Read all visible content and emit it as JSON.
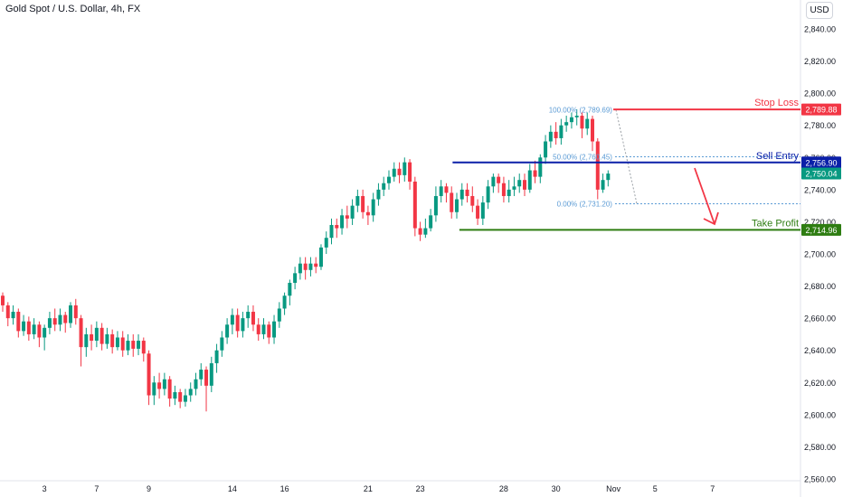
{
  "header": {
    "symbol_title": "Gold Spot / U.S. Dollar, 4h, FX",
    "currency": "USD"
  },
  "chart_data": {
    "type": "candlestick",
    "title": "Gold Spot / U.S. Dollar, 4h, FX",
    "currency": "USD",
    "ylim": [
      2560,
      2848
    ],
    "y_ticks": [
      2560,
      2580,
      2600,
      2620,
      2640,
      2660,
      2680,
      2700,
      2720,
      2740,
      2760,
      2780,
      2800,
      2820,
      2840
    ],
    "y_tick_labels": [
      "2,560.00",
      "2,580.00",
      "2,600.00",
      "2,620.00",
      "2,640.00",
      "2,660.00",
      "2,680.00",
      "2,700.00",
      "2,720.00",
      "2,740.00",
      "2,760.00",
      "2,780.00",
      "2,800.00",
      "2,820.00",
      "2,840.00"
    ],
    "x_tick_labels": [
      "3",
      "7",
      "9",
      "14",
      "16",
      "21",
      "23",
      "28",
      "30",
      "Nov",
      "5",
      "7"
    ],
    "x_tick_bar_index": [
      8,
      18,
      28,
      44,
      54,
      70,
      80,
      96,
      106,
      117,
      125,
      136
    ],
    "up_color": "#089981",
    "down_color": "#f23645",
    "candles": [
      [
        2674,
        2668,
        2676,
        2664
      ],
      [
        2668,
        2660,
        2670,
        2655
      ],
      [
        2660,
        2664,
        2668,
        2656
      ],
      [
        2664,
        2652,
        2666,
        2648
      ],
      [
        2652,
        2658,
        2662,
        2649
      ],
      [
        2658,
        2650,
        2661,
        2646
      ],
      [
        2650,
        2656,
        2660,
        2647
      ],
      [
        2656,
        2648,
        2658,
        2642
      ],
      [
        2648,
        2654,
        2656,
        2640
      ],
      [
        2654,
        2660,
        2664,
        2650
      ],
      [
        2660,
        2656,
        2666,
        2652
      ],
      [
        2656,
        2662,
        2666,
        2652
      ],
      [
        2662,
        2657,
        2664,
        2651
      ],
      [
        2657,
        2668,
        2670,
        2654
      ],
      [
        2668,
        2660,
        2672,
        2656
      ],
      [
        2660,
        2642,
        2662,
        2630
      ],
      [
        2642,
        2650,
        2654,
        2636
      ],
      [
        2650,
        2646,
        2656,
        2640
      ],
      [
        2646,
        2654,
        2658,
        2642
      ],
      [
        2654,
        2644,
        2657,
        2640
      ],
      [
        2644,
        2650,
        2654,
        2641
      ],
      [
        2650,
        2642,
        2653,
        2638
      ],
      [
        2642,
        2648,
        2652,
        2640
      ],
      [
        2648,
        2640,
        2652,
        2636
      ],
      [
        2640,
        2646,
        2650,
        2637
      ],
      [
        2646,
        2641,
        2650,
        2636
      ],
      [
        2641,
        2646,
        2650,
        2637
      ],
      [
        2646,
        2638,
        2648,
        2633
      ],
      [
        2638,
        2612,
        2640,
        2606
      ],
      [
        2612,
        2620,
        2624,
        2606
      ],
      [
        2620,
        2616,
        2626,
        2610
      ],
      [
        2616,
        2622,
        2626,
        2612
      ],
      [
        2622,
        2610,
        2624,
        2605
      ],
      [
        2610,
        2614,
        2618,
        2606
      ],
      [
        2614,
        2608,
        2616,
        2604
      ],
      [
        2608,
        2612,
        2616,
        2605
      ],
      [
        2612,
        2616,
        2620,
        2608
      ],
      [
        2616,
        2622,
        2626,
        2612
      ],
      [
        2622,
        2628,
        2632,
        2618
      ],
      [
        2628,
        2618,
        2630,
        2602
      ],
      [
        2618,
        2632,
        2636,
        2614
      ],
      [
        2632,
        2640,
        2644,
        2626
      ],
      [
        2640,
        2648,
        2652,
        2636
      ],
      [
        2648,
        2656,
        2660,
        2644
      ],
      [
        2656,
        2662,
        2666,
        2650
      ],
      [
        2662,
        2652,
        2666,
        2648
      ],
      [
        2652,
        2660,
        2664,
        2648
      ],
      [
        2660,
        2664,
        2668,
        2654
      ],
      [
        2664,
        2656,
        2668,
        2652
      ],
      [
        2656,
        2650,
        2660,
        2646
      ],
      [
        2650,
        2656,
        2660,
        2647
      ],
      [
        2656,
        2648,
        2658,
        2644
      ],
      [
        2648,
        2658,
        2662,
        2644
      ],
      [
        2658,
        2666,
        2670,
        2654
      ],
      [
        2666,
        2674,
        2676,
        2662
      ],
      [
        2674,
        2682,
        2684,
        2668
      ],
      [
        2682,
        2688,
        2692,
        2678
      ],
      [
        2688,
        2694,
        2698,
        2684
      ],
      [
        2694,
        2690,
        2698,
        2684
      ],
      [
        2690,
        2694,
        2698,
        2686
      ],
      [
        2694,
        2692,
        2698,
        2688
      ],
      [
        2692,
        2704,
        2706,
        2690
      ],
      [
        2704,
        2710,
        2714,
        2700
      ],
      [
        2710,
        2718,
        2722,
        2706
      ],
      [
        2718,
        2716,
        2722,
        2710
      ],
      [
        2716,
        2724,
        2728,
        2712
      ],
      [
        2724,
        2722,
        2730,
        2716
      ],
      [
        2722,
        2730,
        2734,
        2718
      ],
      [
        2730,
        2736,
        2740,
        2726
      ],
      [
        2736,
        2726,
        2740,
        2722
      ],
      [
        2726,
        2724,
        2730,
        2718
      ],
      [
        2724,
        2734,
        2738,
        2720
      ],
      [
        2734,
        2740,
        2744,
        2730
      ],
      [
        2740,
        2744,
        2748,
        2736
      ],
      [
        2744,
        2748,
        2752,
        2740
      ],
      [
        2748,
        2753,
        2757,
        2745
      ],
      [
        2753,
        2749,
        2757,
        2744
      ],
      [
        2749,
        2757,
        2760,
        2745
      ],
      [
        2757,
        2745,
        2759,
        2740
      ],
      [
        2745,
        2716,
        2748,
        2711
      ],
      [
        2716,
        2712,
        2720,
        2708
      ],
      [
        2712,
        2716,
        2722,
        2710
      ],
      [
        2716,
        2724,
        2728,
        2714
      ],
      [
        2724,
        2736,
        2742,
        2720
      ],
      [
        2736,
        2742,
        2746,
        2732
      ],
      [
        2742,
        2738,
        2744,
        2732
      ],
      [
        2738,
        2726,
        2742,
        2722
      ],
      [
        2726,
        2734,
        2738,
        2722
      ],
      [
        2734,
        2740,
        2744,
        2730
      ],
      [
        2740,
        2736,
        2744,
        2732
      ],
      [
        2736,
        2730,
        2742,
        2726
      ],
      [
        2730,
        2722,
        2734,
        2718
      ],
      [
        2722,
        2732,
        2736,
        2718
      ],
      [
        2732,
        2742,
        2746,
        2728
      ],
      [
        2742,
        2748,
        2750,
        2738
      ],
      [
        2748,
        2744,
        2750,
        2738
      ],
      [
        2744,
        2736,
        2748,
        2732
      ],
      [
        2736,
        2740,
        2746,
        2732
      ],
      [
        2740,
        2742,
        2748,
        2736
      ],
      [
        2742,
        2746,
        2750,
        2738
      ],
      [
        2746,
        2740,
        2750,
        2736
      ],
      [
        2740,
        2752,
        2756,
        2738
      ],
      [
        2752,
        2748,
        2758,
        2744
      ],
      [
        2748,
        2760,
        2762,
        2744
      ],
      [
        2760,
        2770,
        2774,
        2756
      ],
      [
        2770,
        2776,
        2780,
        2766
      ],
      [
        2776,
        2772,
        2782,
        2768
      ],
      [
        2772,
        2780,
        2784,
        2768
      ],
      [
        2780,
        2782,
        2786,
        2776
      ],
      [
        2782,
        2785,
        2788,
        2778
      ],
      [
        2785,
        2786,
        2790,
        2780
      ],
      [
        2786,
        2778,
        2788,
        2772
      ],
      [
        2778,
        2784,
        2788,
        2774
      ],
      [
        2784,
        2770,
        2786,
        2764
      ],
      [
        2770,
        2740,
        2772,
        2734
      ],
      [
        2740,
        2746,
        2750,
        2738
      ],
      [
        2746,
        2750,
        2752,
        2742
      ]
    ],
    "levels": [
      {
        "name": "Stop Loss",
        "value": 2789.88,
        "label": "2,789.88",
        "color": "#f23645"
      },
      {
        "name": "Sell Entry",
        "value": 2756.9,
        "label": "2,756.90",
        "color": "#0a1fa8"
      },
      {
        "name": "Take Profit",
        "value": 2714.96,
        "label": "2,714.96",
        "color": "#2e7d12"
      }
    ],
    "current_price": {
      "value": 2750.04,
      "label": "2,750.04",
      "color": "#089981"
    },
    "fib_levels": [
      {
        "label": "100.00% (2,789.69)",
        "value": 2789.69
      },
      {
        "label": "50.00% (2,760.45)",
        "value": 2760.45
      },
      {
        "label": "0.00% (2,731.20)",
        "value": 2731.2
      }
    ],
    "fib_color": "#5b9bd5",
    "arrow_color": "#f23645"
  }
}
